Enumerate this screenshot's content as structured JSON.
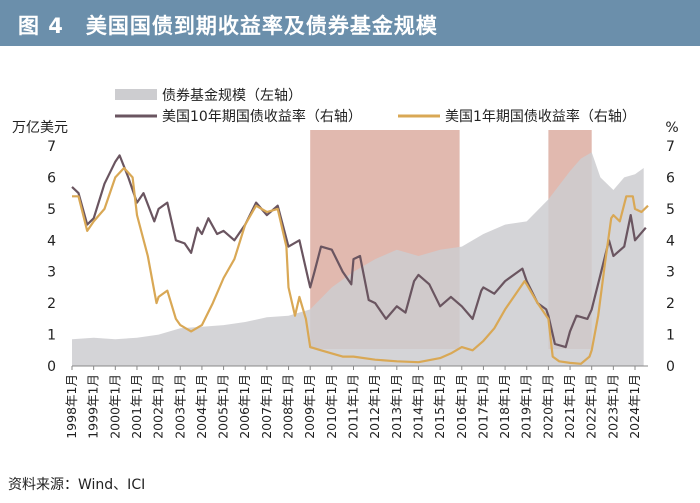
{
  "figure": {
    "title": "图 4　美国国债到期收益率及债券基金规模",
    "source": "资料来源：Wind、ICI"
  },
  "chart_data": {
    "type": "area+line",
    "title": "美国国债到期收益率及债券基金规模",
    "left_axis": {
      "label": "万亿美元",
      "ylim": [
        0,
        7
      ],
      "ticks": [
        0,
        1,
        2,
        3,
        4,
        5,
        6,
        7
      ]
    },
    "right_axis": {
      "label": "%",
      "ylim": [
        0,
        7
      ],
      "ticks": [
        0,
        1,
        2,
        3,
        4,
        5,
        6,
        7
      ]
    },
    "x_ticks": [
      "1998年1月",
      "1999年1月",
      "2000年1月",
      "2001年1月",
      "2002年1月",
      "2003年1月",
      "2004年1月",
      "2005年1月",
      "2006年1月",
      "2007年1月",
      "2008年1月",
      "2009年1月",
      "2010年1月",
      "2011年1月",
      "2012年1月",
      "2013年1月",
      "2014年1月",
      "2015年1月",
      "2016年1月",
      "2017年1月",
      "2018年1月",
      "2019年1月",
      "2020年1月",
      "2021年1月",
      "2022年1月",
      "2023年1月",
      "2024年1月"
    ],
    "x_range": [
      1998.0,
      2024.6
    ],
    "shaded_periods": [
      [
        2009.0,
        2015.9
      ],
      [
        2020.0,
        2022.0
      ]
    ],
    "colors": {
      "fund": "#cdcdd0",
      "ten_year": "#6a5560",
      "one_year": "#d9a855",
      "shade": "#c9806e",
      "accent": "#6b8fab"
    },
    "series": [
      {
        "name": "债券基金规模（左轴）",
        "axis": "left",
        "kind": "area",
        "points": [
          [
            1998.0,
            0.85
          ],
          [
            1999.0,
            0.9
          ],
          [
            2000.0,
            0.85
          ],
          [
            2001.0,
            0.9
          ],
          [
            2002.0,
            1.0
          ],
          [
            2003.0,
            1.2
          ],
          [
            2004.0,
            1.25
          ],
          [
            2005.0,
            1.3
          ],
          [
            2006.0,
            1.4
          ],
          [
            2007.0,
            1.55
          ],
          [
            2008.0,
            1.6
          ],
          [
            2009.0,
            1.8
          ],
          [
            2010.0,
            2.5
          ],
          [
            2011.0,
            3.0
          ],
          [
            2012.0,
            3.4
          ],
          [
            2013.0,
            3.7
          ],
          [
            2014.0,
            3.5
          ],
          [
            2015.0,
            3.7
          ],
          [
            2016.0,
            3.8
          ],
          [
            2017.0,
            4.2
          ],
          [
            2018.0,
            4.5
          ],
          [
            2019.0,
            4.6
          ],
          [
            2020.0,
            5.3
          ],
          [
            2021.0,
            6.2
          ],
          [
            2021.5,
            6.6
          ],
          [
            2022.0,
            6.8
          ],
          [
            2022.4,
            6.0
          ],
          [
            2023.0,
            5.6
          ],
          [
            2023.5,
            6.0
          ],
          [
            2024.0,
            6.1
          ],
          [
            2024.4,
            6.3
          ]
        ]
      },
      {
        "name": "美国10年期国债收益率（右轴）",
        "axis": "right",
        "kind": "line",
        "points": [
          [
            1998.0,
            5.7
          ],
          [
            1998.3,
            5.5
          ],
          [
            1998.7,
            4.5
          ],
          [
            1999.0,
            4.7
          ],
          [
            1999.5,
            5.8
          ],
          [
            2000.0,
            6.5
          ],
          [
            2000.2,
            6.7
          ],
          [
            2000.6,
            6.0
          ],
          [
            2001.0,
            5.2
          ],
          [
            2001.3,
            5.5
          ],
          [
            2001.8,
            4.6
          ],
          [
            2002.0,
            5.0
          ],
          [
            2002.4,
            5.2
          ],
          [
            2002.8,
            4.0
          ],
          [
            2003.2,
            3.9
          ],
          [
            2003.5,
            3.6
          ],
          [
            2003.8,
            4.4
          ],
          [
            2004.0,
            4.2
          ],
          [
            2004.3,
            4.7
          ],
          [
            2004.7,
            4.2
          ],
          [
            2005.0,
            4.3
          ],
          [
            2005.5,
            4.0
          ],
          [
            2006.0,
            4.5
          ],
          [
            2006.5,
            5.2
          ],
          [
            2007.0,
            4.8
          ],
          [
            2007.5,
            5.1
          ],
          [
            2008.0,
            3.8
          ],
          [
            2008.5,
            4.0
          ],
          [
            2008.9,
            2.8
          ],
          [
            2009.0,
            2.5
          ],
          [
            2009.2,
            3.0
          ],
          [
            2009.5,
            3.8
          ],
          [
            2010.0,
            3.7
          ],
          [
            2010.5,
            3.0
          ],
          [
            2010.9,
            2.6
          ],
          [
            2011.0,
            3.4
          ],
          [
            2011.3,
            3.5
          ],
          [
            2011.7,
            2.1
          ],
          [
            2012.0,
            2.0
          ],
          [
            2012.5,
            1.5
          ],
          [
            2013.0,
            1.9
          ],
          [
            2013.4,
            1.7
          ],
          [
            2013.8,
            2.7
          ],
          [
            2014.0,
            2.9
          ],
          [
            2014.5,
            2.6
          ],
          [
            2015.0,
            1.9
          ],
          [
            2015.5,
            2.2
          ],
          [
            2016.0,
            1.9
          ],
          [
            2016.5,
            1.5
          ],
          [
            2016.9,
            2.4
          ],
          [
            2017.0,
            2.5
          ],
          [
            2017.5,
            2.3
          ],
          [
            2018.0,
            2.7
          ],
          [
            2018.8,
            3.1
          ],
          [
            2019.0,
            2.7
          ],
          [
            2019.5,
            2.0
          ],
          [
            2019.9,
            1.8
          ],
          [
            2020.0,
            1.6
          ],
          [
            2020.3,
            0.7
          ],
          [
            2020.8,
            0.6
          ],
          [
            2021.0,
            1.1
          ],
          [
            2021.3,
            1.6
          ],
          [
            2021.8,
            1.5
          ],
          [
            2022.0,
            1.8
          ],
          [
            2022.4,
            2.9
          ],
          [
            2022.8,
            4.0
          ],
          [
            2023.0,
            3.5
          ],
          [
            2023.5,
            3.8
          ],
          [
            2023.8,
            4.8
          ],
          [
            2024.0,
            4.0
          ],
          [
            2024.5,
            4.4
          ]
        ]
      },
      {
        "name": "美国1年期国债收益率（右轴）",
        "axis": "right",
        "kind": "line",
        "points": [
          [
            1998.0,
            5.4
          ],
          [
            1998.3,
            5.4
          ],
          [
            1998.7,
            4.3
          ],
          [
            1999.0,
            4.6
          ],
          [
            1999.5,
            5.0
          ],
          [
            2000.0,
            6.0
          ],
          [
            2000.4,
            6.3
          ],
          [
            2000.8,
            6.0
          ],
          [
            2001.0,
            4.8
          ],
          [
            2001.5,
            3.5
          ],
          [
            2001.9,
            2.0
          ],
          [
            2002.0,
            2.2
          ],
          [
            2002.4,
            2.4
          ],
          [
            2002.8,
            1.5
          ],
          [
            2003.0,
            1.3
          ],
          [
            2003.5,
            1.1
          ],
          [
            2004.0,
            1.3
          ],
          [
            2004.5,
            2.0
          ],
          [
            2005.0,
            2.8
          ],
          [
            2005.5,
            3.4
          ],
          [
            2006.0,
            4.5
          ],
          [
            2006.5,
            5.1
          ],
          [
            2007.0,
            4.9
          ],
          [
            2007.5,
            5.0
          ],
          [
            2007.9,
            3.8
          ],
          [
            2008.0,
            2.5
          ],
          [
            2008.3,
            1.6
          ],
          [
            2008.5,
            2.2
          ],
          [
            2008.8,
            1.5
          ],
          [
            2009.0,
            0.6
          ],
          [
            2009.5,
            0.5
          ],
          [
            2010.0,
            0.4
          ],
          [
            2010.5,
            0.3
          ],
          [
            2011.0,
            0.3
          ],
          [
            2012.0,
            0.2
          ],
          [
            2013.0,
            0.15
          ],
          [
            2014.0,
            0.12
          ],
          [
            2015.0,
            0.25
          ],
          [
            2015.5,
            0.4
          ],
          [
            2016.0,
            0.6
          ],
          [
            2016.5,
            0.5
          ],
          [
            2017.0,
            0.8
          ],
          [
            2017.5,
            1.2
          ],
          [
            2018.0,
            1.8
          ],
          [
            2018.5,
            2.3
          ],
          [
            2018.9,
            2.7
          ],
          [
            2019.0,
            2.6
          ],
          [
            2019.5,
            2.0
          ],
          [
            2019.9,
            1.6
          ],
          [
            2020.0,
            1.5
          ],
          [
            2020.2,
            0.3
          ],
          [
            2020.5,
            0.15
          ],
          [
            2021.0,
            0.1
          ],
          [
            2021.5,
            0.07
          ],
          [
            2021.9,
            0.3
          ],
          [
            2022.0,
            0.5
          ],
          [
            2022.3,
            1.6
          ],
          [
            2022.6,
            3.2
          ],
          [
            2022.9,
            4.7
          ],
          [
            2023.0,
            4.8
          ],
          [
            2023.3,
            4.6
          ],
          [
            2023.6,
            5.4
          ],
          [
            2023.9,
            5.4
          ],
          [
            2024.0,
            5.0
          ],
          [
            2024.3,
            4.9
          ],
          [
            2024.6,
            5.1
          ]
        ]
      }
    ]
  }
}
